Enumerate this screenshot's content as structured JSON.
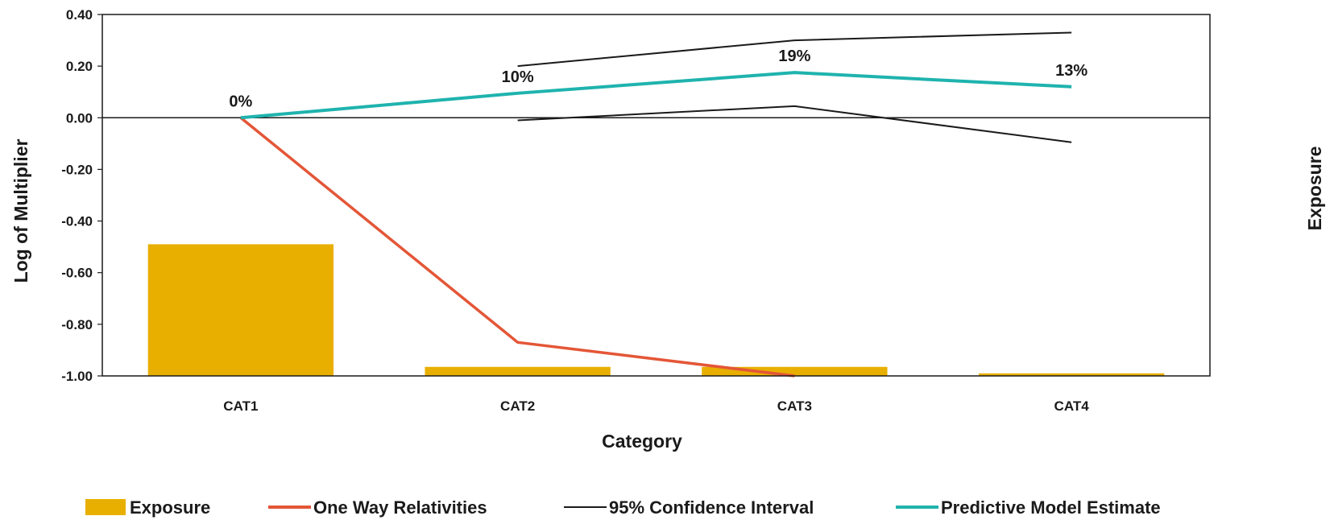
{
  "chart_data": {
    "type": "bar",
    "title": "",
    "xlabel": "Category",
    "ylabel": "Log of Multiplier",
    "y2label": "Exposure",
    "ylim": [
      -1.0,
      0.4
    ],
    "yticks": [
      0.4,
      0.2,
      0.0,
      -0.2,
      -0.4,
      -0.6,
      -0.8,
      -1.0
    ],
    "ytick_labels": [
      "0.40",
      "0.20",
      "0.00",
      "-0.20",
      "-0.40",
      "-0.60",
      "-0.80",
      "-1.00"
    ],
    "categories": [
      "CAT1",
      "CAT2",
      "CAT3",
      "CAT4"
    ],
    "grid": false,
    "legend_position": "bottom",
    "series": [
      {
        "name": "Exposure",
        "kind": "bar",
        "color": "#E8AF00",
        "values": [
          -0.49,
          -0.965,
          -0.965,
          -0.99
        ]
      },
      {
        "name": "One Way Relativities",
        "kind": "line",
        "color": "#E45637",
        "values": [
          0.0,
          -0.87,
          -1.0,
          null
        ]
      },
      {
        "name": "95% Confidence Interval",
        "kind": "line",
        "color": "#1a1a1a",
        "upper": [
          null,
          0.2,
          0.3,
          0.33
        ],
        "lower": [
          null,
          -0.01,
          0.045,
          -0.095
        ]
      },
      {
        "name": "Predictive Model Estimate",
        "kind": "line",
        "color": "#1FB3AE",
        "values": [
          0.0,
          0.095,
          0.175,
          0.12
        ]
      }
    ],
    "data_labels": [
      "0%",
      "10%",
      "19%",
      "13%"
    ]
  }
}
